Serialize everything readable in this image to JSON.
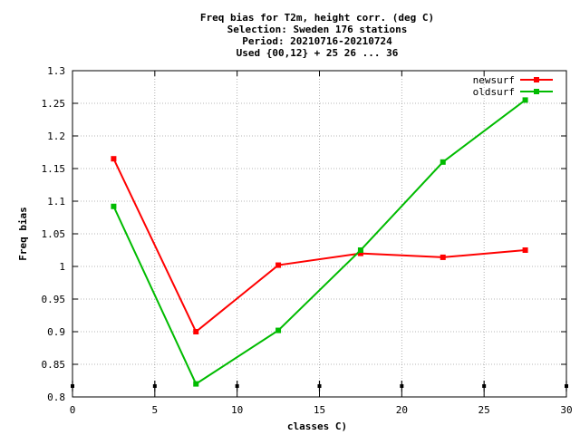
{
  "chart_data": {
    "type": "line",
    "title_lines": [
      "Freq bias  for T2m, height corr. (deg C)",
      "Selection: Sweden    176 stations",
      "Period: 20210716-20210724",
      "Used {00,12} + 25 26 ... 36"
    ],
    "xlabel": "classes C)",
    "ylabel": "Freq bias",
    "xlim": [
      0,
      30
    ],
    "ylim": [
      0.8,
      1.3
    ],
    "xticks": [
      0,
      5,
      10,
      15,
      20,
      25,
      30
    ],
    "xtick_labels": [
      "0",
      "5",
      "10",
      "15",
      "20",
      "25",
      "30"
    ],
    "yticks": [
      0.8,
      0.85,
      0.9,
      0.95,
      1.0,
      1.05,
      1.1,
      1.15,
      1.2,
      1.25,
      1.3
    ],
    "ytick_labels": [
      "0.8",
      "0.85",
      "0.9",
      "0.95",
      "1",
      "1.05",
      "1.1",
      "1.15",
      "1.2",
      "1.25",
      "1.3"
    ],
    "grid": true,
    "legend_position": "top-right",
    "series": [
      {
        "name": "newsurf",
        "color": "#ff0000",
        "x": [
          2.5,
          7.5,
          12.5,
          17.5,
          22.5,
          27.5
        ],
        "y": [
          1.165,
          0.9,
          1.002,
          1.02,
          1.014,
          1.025
        ]
      },
      {
        "name": "oldsurf",
        "color": "#00bb00",
        "x": [
          2.5,
          7.5,
          12.5,
          17.5,
          22.5,
          27.5
        ],
        "y": [
          1.092,
          0.82,
          0.902,
          1.025,
          1.16,
          1.255
        ]
      }
    ],
    "count_markers_x": [
      0,
      5,
      10,
      15,
      20,
      25,
      30
    ]
  }
}
